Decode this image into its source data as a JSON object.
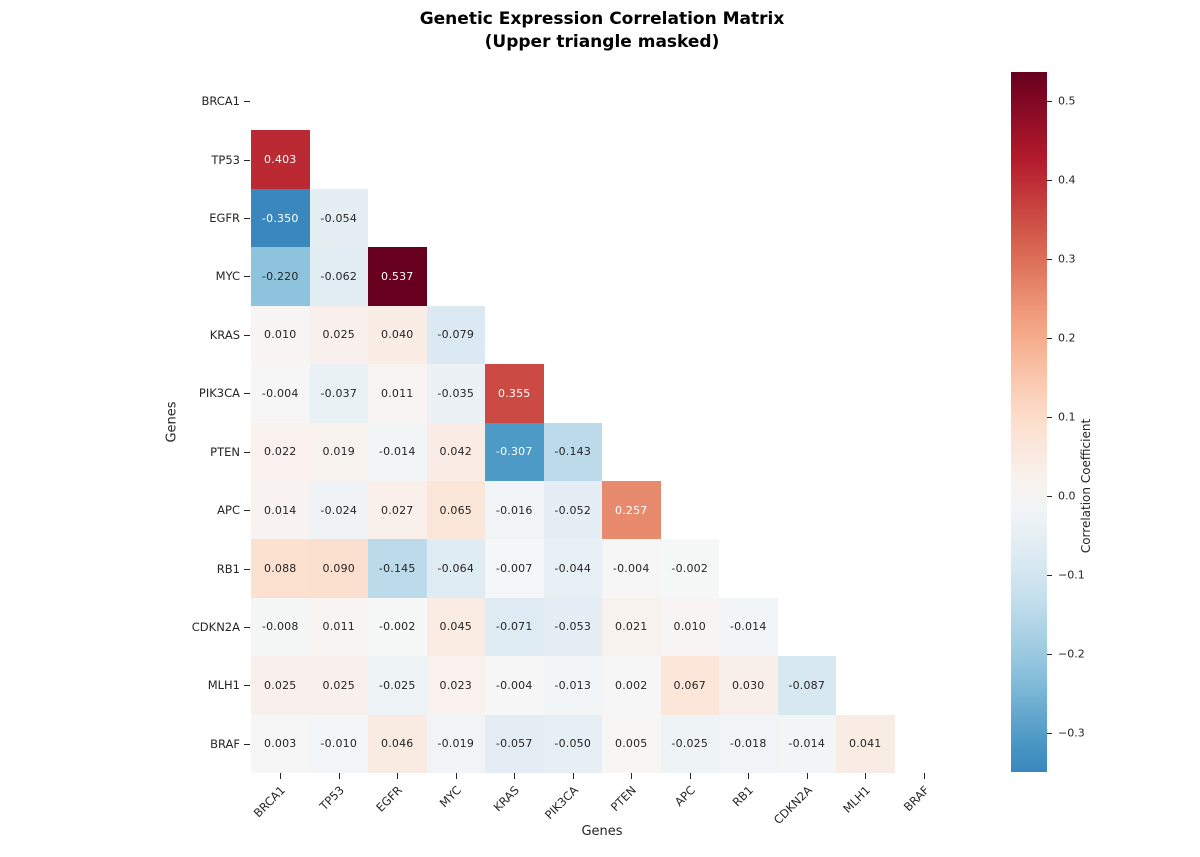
{
  "figure": {
    "title_line1": "Genetic Expression Correlation Matrix",
    "title_line2": "(Upper triangle masked)",
    "xlabel": "Genes",
    "ylabel": "Genes",
    "colorbar_label": "Correlation Coefficient"
  },
  "chart_data": {
    "type": "heatmap",
    "title": "Genetic Expression Correlation Matrix (Upper triangle masked)",
    "xlabel": "Genes",
    "ylabel": "Genes",
    "legend_position": "colorbar-right",
    "grid": false,
    "mask": "upper triangle and diagonal masked (only cells with column index < row index shown)",
    "genes": [
      "BRCA1",
      "TP53",
      "EGFR",
      "MYC",
      "KRAS",
      "PIK3CA",
      "PTEN",
      "APC",
      "RB1",
      "CDKN2A",
      "MLH1",
      "BRAF"
    ],
    "matrix_lower_triangle": [
      [],
      [
        0.403
      ],
      [
        -0.35,
        -0.054
      ],
      [
        -0.22,
        -0.062,
        0.537
      ],
      [
        0.01,
        0.025,
        0.04,
        -0.079
      ],
      [
        -0.004,
        -0.037,
        0.011,
        -0.035,
        0.355
      ],
      [
        0.022,
        0.019,
        -0.014,
        0.042,
        -0.307,
        -0.143
      ],
      [
        0.014,
        -0.024,
        0.027,
        0.065,
        -0.016,
        -0.052,
        0.257
      ],
      [
        0.088,
        0.09,
        -0.145,
        -0.064,
        -0.007,
        -0.044,
        -0.004,
        -0.002
      ],
      [
        -0.008,
        0.011,
        -0.002,
        0.045,
        -0.071,
        -0.053,
        0.021,
        0.01,
        -0.014
      ],
      [
        0.025,
        0.025,
        -0.025,
        0.023,
        -0.004,
        -0.013,
        0.002,
        0.067,
        0.03,
        -0.087
      ],
      [
        0.003,
        -0.01,
        0.046,
        -0.019,
        -0.057,
        -0.05,
        0.005,
        -0.025,
        -0.018,
        -0.014,
        0.041
      ]
    ],
    "annotation_decimals": 3,
    "vmin": -0.35,
    "vmax": 0.537,
    "center": 0,
    "colormap": "RdBu_r",
    "colormap_stops": [
      "#053061",
      "#2166ac",
      "#4393c3",
      "#92c5de",
      "#d1e5f0",
      "#f7f7f7",
      "#fddbc7",
      "#f4a582",
      "#d6604d",
      "#b2182b",
      "#67001f"
    ],
    "text_colors": {
      "dark": "#262626",
      "light": "#ffffff"
    },
    "colorbar_ticks": [
      {
        "v": 0.5,
        "label": "0.5"
      },
      {
        "v": 0.4,
        "label": "0.4"
      },
      {
        "v": 0.3,
        "label": "0.3"
      },
      {
        "v": 0.2,
        "label": "0.2"
      },
      {
        "v": 0.1,
        "label": "0.1"
      },
      {
        "v": 0.0,
        "label": "0.0"
      },
      {
        "v": -0.1,
        "label": "−0.1"
      },
      {
        "v": -0.2,
        "label": "−0.2"
      },
      {
        "v": -0.3,
        "label": "−0.3"
      }
    ]
  }
}
